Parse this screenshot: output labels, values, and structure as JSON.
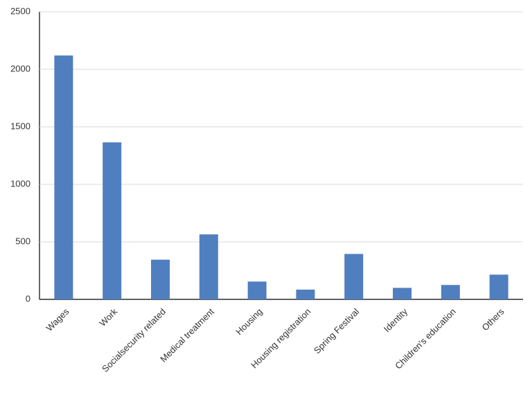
{
  "chart_data": {
    "type": "bar",
    "categories": [
      "Wages",
      "Work",
      "Socialsecurity related",
      "Medical treatment",
      "Housing",
      "Housing registration",
      "Spring Festival",
      "Identity",
      "Children's education",
      "Others"
    ],
    "values": [
      2120,
      1365,
      345,
      565,
      155,
      85,
      395,
      100,
      125,
      215
    ],
    "color": "#4f7fbf",
    "ylim": [
      0,
      2500
    ],
    "yticks": [
      0,
      500,
      1000,
      1500,
      2000,
      2500
    ],
    "grid": true
  }
}
